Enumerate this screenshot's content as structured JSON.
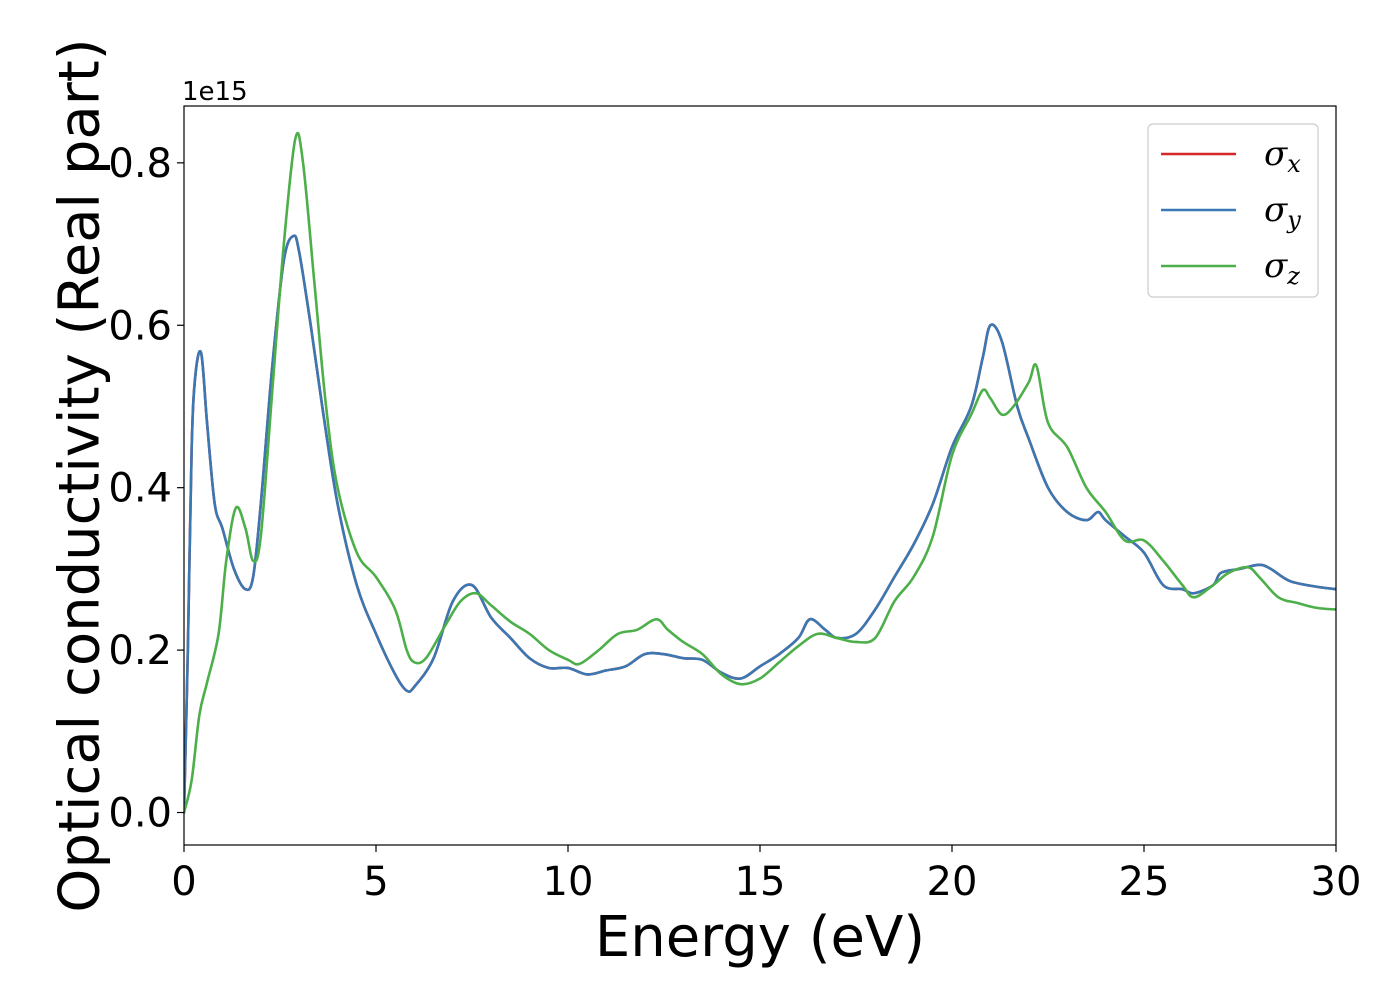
{
  "chart_data": {
    "type": "line",
    "title": "",
    "xlabel": "Energy (eV)",
    "ylabel": "Optical conductivity (Real part)",
    "y_offset_label": "1e15",
    "xlim": [
      0,
      30
    ],
    "ylim": [
      -0.04,
      0.87
    ],
    "x_ticks": [
      0,
      5,
      10,
      15,
      20,
      25,
      30
    ],
    "x_tick_labels": [
      "0",
      "5",
      "10",
      "15",
      "20",
      "25",
      "30"
    ],
    "y_ticks": [
      0.0,
      0.2,
      0.4,
      0.6,
      0.8
    ],
    "y_tick_labels": [
      "0.0",
      "0.2",
      "0.4",
      "0.6",
      "0.8"
    ],
    "grid": false,
    "legend_position": "top-right",
    "series": [
      {
        "name": "σx",
        "legend_symbol": "σ",
        "legend_subscript": "x",
        "color": "#d62728",
        "x": [
          0,
          0.1,
          0.2,
          0.3,
          0.45,
          0.6,
          0.8,
          1.0,
          1.3,
          1.6,
          1.8,
          2.0,
          2.3,
          2.6,
          2.85,
          3.0,
          3.3,
          3.6,
          4.0,
          4.5,
          5.0,
          5.5,
          5.8,
          6.0,
          6.5,
          7.0,
          7.5,
          8.0,
          8.5,
          9.0,
          9.5,
          10.0,
          10.5,
          11.0,
          11.5,
          12.0,
          12.5,
          13.0,
          13.5,
          14.0,
          14.5,
          15.0,
          15.5,
          16.0,
          16.3,
          16.7,
          17.0,
          17.5,
          18.0,
          18.5,
          19.0,
          19.5,
          20.0,
          20.5,
          20.8,
          21.0,
          21.3,
          21.7,
          22.0,
          22.5,
          23.0,
          23.5,
          23.8,
          24.0,
          24.5,
          25.0,
          25.5,
          26.0,
          26.3,
          26.8,
          27.0,
          27.5,
          28.0,
          28.3,
          28.8,
          29.5,
          30.0
        ],
        "y": [
          0.0,
          0.2,
          0.45,
          0.54,
          0.565,
          0.48,
          0.38,
          0.35,
          0.3,
          0.275,
          0.29,
          0.38,
          0.55,
          0.68,
          0.71,
          0.69,
          0.6,
          0.5,
          0.38,
          0.28,
          0.22,
          0.17,
          0.15,
          0.155,
          0.19,
          0.26,
          0.28,
          0.24,
          0.215,
          0.19,
          0.178,
          0.178,
          0.17,
          0.175,
          0.18,
          0.195,
          0.195,
          0.19,
          0.188,
          0.172,
          0.165,
          0.18,
          0.195,
          0.215,
          0.238,
          0.225,
          0.215,
          0.22,
          0.25,
          0.29,
          0.33,
          0.38,
          0.45,
          0.5,
          0.56,
          0.6,
          0.58,
          0.5,
          0.46,
          0.4,
          0.37,
          0.36,
          0.37,
          0.36,
          0.34,
          0.32,
          0.28,
          0.275,
          0.27,
          0.28,
          0.295,
          0.3,
          0.305,
          0.3,
          0.285,
          0.278,
          0.275
        ]
      },
      {
        "name": "σy",
        "legend_symbol": "σ",
        "legend_subscript": "y",
        "color": "#3a78b4",
        "x": [
          0,
          0.1,
          0.2,
          0.3,
          0.45,
          0.6,
          0.8,
          1.0,
          1.3,
          1.6,
          1.8,
          2.0,
          2.3,
          2.6,
          2.85,
          3.0,
          3.3,
          3.6,
          4.0,
          4.5,
          5.0,
          5.5,
          5.8,
          6.0,
          6.5,
          7.0,
          7.5,
          8.0,
          8.5,
          9.0,
          9.5,
          10.0,
          10.5,
          11.0,
          11.5,
          12.0,
          12.5,
          13.0,
          13.5,
          14.0,
          14.5,
          15.0,
          15.5,
          16.0,
          16.3,
          16.7,
          17.0,
          17.5,
          18.0,
          18.5,
          19.0,
          19.5,
          20.0,
          20.5,
          20.8,
          21.0,
          21.3,
          21.7,
          22.0,
          22.5,
          23.0,
          23.5,
          23.8,
          24.0,
          24.5,
          25.0,
          25.5,
          26.0,
          26.3,
          26.8,
          27.0,
          27.5,
          28.0,
          28.3,
          28.8,
          29.5,
          30.0
        ],
        "y": [
          0.0,
          0.2,
          0.45,
          0.54,
          0.565,
          0.48,
          0.38,
          0.35,
          0.3,
          0.275,
          0.29,
          0.38,
          0.55,
          0.68,
          0.71,
          0.69,
          0.6,
          0.5,
          0.38,
          0.28,
          0.22,
          0.17,
          0.15,
          0.155,
          0.19,
          0.26,
          0.28,
          0.24,
          0.215,
          0.19,
          0.178,
          0.178,
          0.17,
          0.175,
          0.18,
          0.195,
          0.195,
          0.19,
          0.188,
          0.172,
          0.165,
          0.18,
          0.195,
          0.215,
          0.238,
          0.225,
          0.215,
          0.22,
          0.25,
          0.29,
          0.33,
          0.38,
          0.45,
          0.5,
          0.56,
          0.6,
          0.58,
          0.5,
          0.46,
          0.4,
          0.37,
          0.36,
          0.37,
          0.36,
          0.34,
          0.32,
          0.28,
          0.275,
          0.27,
          0.28,
          0.295,
          0.3,
          0.305,
          0.3,
          0.285,
          0.278,
          0.275
        ]
      },
      {
        "name": "σz",
        "legend_symbol": "σ",
        "legend_subscript": "z",
        "color": "#4daf4a",
        "x": [
          0,
          0.2,
          0.4,
          0.6,
          0.9,
          1.1,
          1.35,
          1.6,
          1.8,
          2.0,
          2.3,
          2.6,
          2.9,
          3.1,
          3.4,
          3.7,
          4.0,
          4.5,
          5.0,
          5.5,
          5.8,
          6.0,
          6.3,
          6.8,
          7.2,
          7.6,
          8.0,
          8.5,
          9.0,
          9.5,
          10.0,
          10.3,
          10.8,
          11.3,
          11.8,
          12.3,
          12.6,
          13.0,
          13.5,
          14.0,
          14.5,
          15.0,
          15.5,
          16.0,
          16.5,
          17.0,
          17.5,
          18.0,
          18.5,
          19.0,
          19.5,
          20.0,
          20.5,
          20.8,
          21.0,
          21.3,
          21.6,
          22.0,
          22.2,
          22.5,
          23.0,
          23.5,
          24.0,
          24.5,
          25.0,
          25.5,
          26.0,
          26.3,
          26.8,
          27.2,
          27.7,
          28.0,
          28.5,
          29.0,
          29.5,
          30.0
        ],
        "y": [
          0.0,
          0.04,
          0.12,
          0.16,
          0.22,
          0.31,
          0.375,
          0.35,
          0.31,
          0.34,
          0.52,
          0.7,
          0.83,
          0.8,
          0.65,
          0.5,
          0.4,
          0.32,
          0.29,
          0.25,
          0.2,
          0.185,
          0.19,
          0.23,
          0.26,
          0.27,
          0.255,
          0.235,
          0.22,
          0.2,
          0.188,
          0.183,
          0.2,
          0.22,
          0.225,
          0.238,
          0.225,
          0.21,
          0.195,
          0.17,
          0.158,
          0.165,
          0.185,
          0.205,
          0.22,
          0.215,
          0.21,
          0.215,
          0.26,
          0.29,
          0.34,
          0.44,
          0.49,
          0.52,
          0.51,
          0.49,
          0.5,
          0.53,
          0.55,
          0.48,
          0.45,
          0.4,
          0.37,
          0.335,
          0.335,
          0.31,
          0.28,
          0.265,
          0.28,
          0.295,
          0.302,
          0.29,
          0.265,
          0.258,
          0.252,
          0.25
        ]
      }
    ]
  }
}
